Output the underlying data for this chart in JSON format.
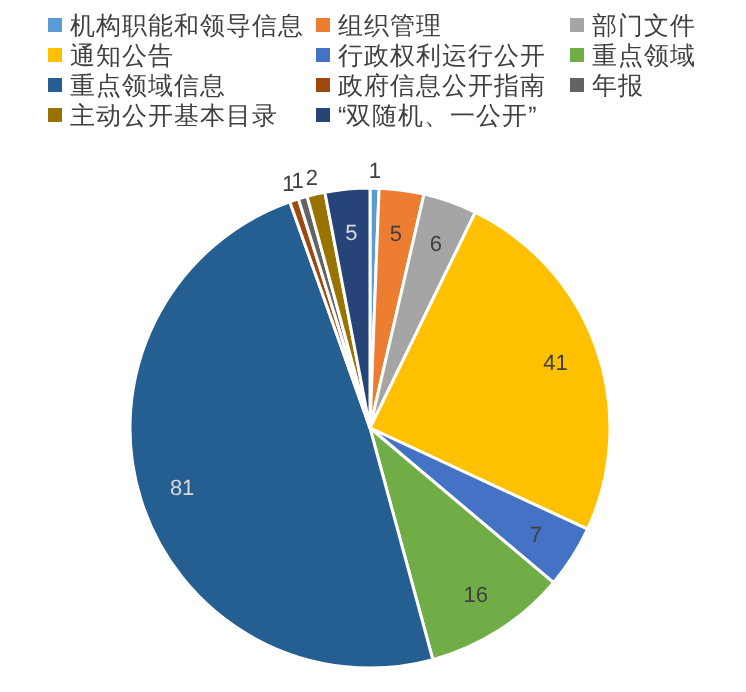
{
  "chart_data": {
    "type": "pie",
    "categories": [
      "机构职能和领导信息",
      "组织管理",
      "部门文件",
      "通知公告",
      "行政权利运行公开",
      "重点领域",
      "重点领域信息",
      "政府信息公开指南",
      "年报",
      "主动公开基本目录",
      "“双随机、一公开”"
    ],
    "values": [
      1,
      5,
      6,
      41,
      7,
      16,
      81,
      1,
      1,
      2,
      5
    ],
    "colors": [
      "#5b9bd5",
      "#ed7d31",
      "#a5a5a5",
      "#ffc000",
      "#4472c4",
      "#70ad47",
      "#255e91",
      "#9e480e",
      "#636363",
      "#997300",
      "#264478"
    ],
    "data_labels": true,
    "legend": "top"
  }
}
